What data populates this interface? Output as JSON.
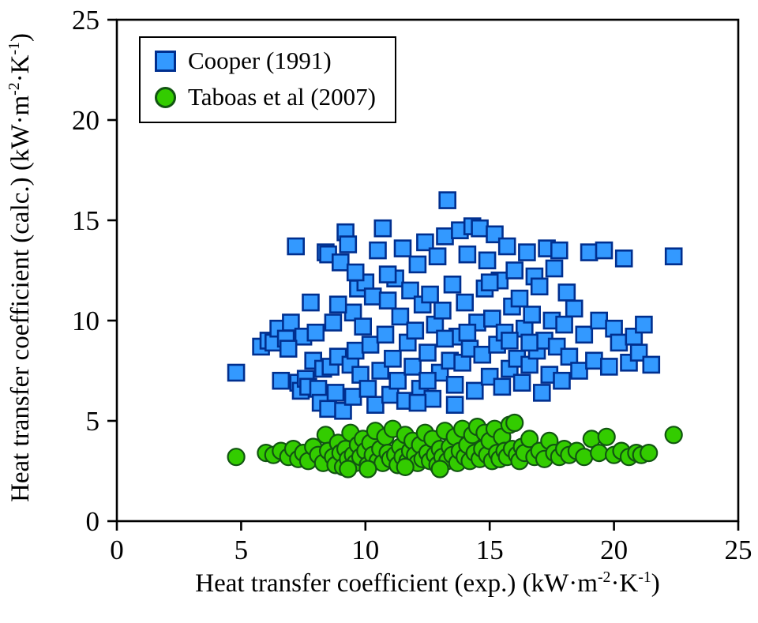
{
  "chart_data": {
    "type": "scatter",
    "title": "",
    "xlabel_parts": [
      {
        "t": "Heat transfer coefficient (exp.) (kW·m"
      },
      {
        "t": "-2",
        "sup": true
      },
      {
        "t": "·K"
      },
      {
        "t": "-1",
        "sup": true
      },
      {
        "t": ")"
      }
    ],
    "ylabel_parts": [
      {
        "t": "Heat transfer coefficient (calc.) (kW·m"
      },
      {
        "t": "-2",
        "sup": true
      },
      {
        "t": "·K"
      },
      {
        "t": "-1",
        "sup": true
      },
      {
        "t": ")"
      }
    ],
    "xlim": [
      0,
      25
    ],
    "ylim": [
      0,
      25
    ],
    "xticks": [
      0,
      5,
      10,
      15,
      20,
      25
    ],
    "yticks": [
      0,
      5,
      10,
      15,
      20,
      25
    ],
    "grid": false,
    "legend_position": "top-left",
    "frame_color": "#000000",
    "series": [
      {
        "name": "Cooper (1991)",
        "marker": "square",
        "fill": "#3399FF",
        "stroke": "#002F8F",
        "points": [
          [
            5.8,
            8.7
          ],
          [
            6.1,
            9.0
          ],
          [
            6.3,
            8.9
          ],
          [
            6.5,
            9.6
          ],
          [
            6.6,
            7.0
          ],
          [
            6.8,
            9.1
          ],
          [
            7.0,
            9.9
          ],
          [
            7.2,
            13.7
          ],
          [
            7.3,
            6.9
          ],
          [
            7.4,
            6.5
          ],
          [
            7.5,
            9.2
          ],
          [
            7.6,
            7.1
          ],
          [
            7.7,
            6.7
          ],
          [
            7.8,
            10.9
          ],
          [
            7.9,
            8.0
          ],
          [
            8.0,
            9.4
          ],
          [
            8.1,
            6.6
          ],
          [
            8.2,
            5.9
          ],
          [
            8.3,
            7.6
          ],
          [
            8.4,
            13.4
          ],
          [
            8.5,
            13.3
          ],
          [
            8.5,
            5.6
          ],
          [
            8.6,
            7.7
          ],
          [
            8.7,
            9.9
          ],
          [
            8.8,
            6.4
          ],
          [
            8.9,
            8.2
          ],
          [
            9.0,
            12.9
          ],
          [
            9.1,
            5.5
          ],
          [
            9.2,
            14.4
          ],
          [
            9.3,
            13.8
          ],
          [
            9.4,
            7.8
          ],
          [
            9.5,
            6.2
          ],
          [
            9.5,
            10.4
          ],
          [
            9.6,
            8.5
          ],
          [
            9.7,
            11.6
          ],
          [
            9.8,
            7.3
          ],
          [
            9.9,
            9.7
          ],
          [
            10.0,
            11.9
          ],
          [
            10.1,
            6.6
          ],
          [
            10.2,
            8.8
          ],
          [
            10.3,
            11.2
          ],
          [
            10.4,
            5.8
          ],
          [
            10.5,
            13.5
          ],
          [
            10.6,
            7.5
          ],
          [
            10.7,
            14.6
          ],
          [
            10.8,
            9.3
          ],
          [
            10.9,
            11.0
          ],
          [
            11.0,
            6.3
          ],
          [
            11.1,
            8.1
          ],
          [
            11.2,
            12.1
          ],
          [
            11.3,
            7.0
          ],
          [
            11.4,
            10.2
          ],
          [
            11.5,
            13.6
          ],
          [
            11.6,
            6.0
          ],
          [
            11.7,
            8.9
          ],
          [
            11.8,
            11.5
          ],
          [
            11.9,
            7.7
          ],
          [
            12.0,
            9.5
          ],
          [
            12.1,
            12.8
          ],
          [
            12.2,
            6.6
          ],
          [
            12.3,
            10.8
          ],
          [
            12.4,
            13.9
          ],
          [
            12.5,
            8.4
          ],
          [
            12.6,
            11.3
          ],
          [
            12.7,
            6.1
          ],
          [
            12.8,
            9.8
          ],
          [
            12.9,
            13.2
          ],
          [
            13.0,
            7.4
          ],
          [
            13.1,
            10.5
          ],
          [
            13.2,
            14.2
          ],
          [
            13.3,
            16.0
          ],
          [
            13.4,
            8.0
          ],
          [
            13.5,
            11.8
          ],
          [
            13.6,
            6.8
          ],
          [
            13.7,
            9.2
          ],
          [
            13.8,
            14.5
          ],
          [
            13.9,
            7.9
          ],
          [
            14.0,
            10.9
          ],
          [
            14.1,
            13.3
          ],
          [
            14.2,
            8.6
          ],
          [
            14.3,
            14.7
          ],
          [
            14.4,
            6.5
          ],
          [
            14.5,
            9.9
          ],
          [
            14.6,
            14.6
          ],
          [
            14.7,
            8.3
          ],
          [
            14.8,
            11.6
          ],
          [
            14.9,
            13.0
          ],
          [
            15.0,
            7.2
          ],
          [
            15.1,
            10.1
          ],
          [
            15.2,
            14.3
          ],
          [
            15.3,
            8.8
          ],
          [
            15.4,
            12.0
          ],
          [
            15.5,
            6.7
          ],
          [
            15.6,
            9.4
          ],
          [
            15.7,
            13.7
          ],
          [
            15.8,
            7.6
          ],
          [
            15.9,
            10.7
          ],
          [
            16.0,
            12.5
          ],
          [
            16.1,
            8.1
          ],
          [
            16.2,
            11.1
          ],
          [
            16.3,
            6.9
          ],
          [
            16.4,
            9.6
          ],
          [
            16.5,
            13.4
          ],
          [
            16.6,
            7.8
          ],
          [
            16.7,
            10.3
          ],
          [
            16.8,
            12.2
          ],
          [
            16.9,
            8.5
          ],
          [
            17.0,
            11.7
          ],
          [
            17.1,
            6.4
          ],
          [
            17.2,
            9.0
          ],
          [
            17.3,
            13.6
          ],
          [
            17.4,
            7.3
          ],
          [
            17.5,
            10.0
          ],
          [
            17.6,
            12.6
          ],
          [
            17.7,
            8.7
          ],
          [
            17.8,
            13.5
          ],
          [
            17.9,
            7.0
          ],
          [
            18.0,
            9.8
          ],
          [
            18.1,
            11.4
          ],
          [
            18.2,
            8.2
          ],
          [
            18.4,
            10.6
          ],
          [
            18.6,
            7.5
          ],
          [
            18.8,
            9.3
          ],
          [
            19.0,
            13.4
          ],
          [
            19.2,
            8.0
          ],
          [
            19.4,
            10.0
          ],
          [
            19.6,
            13.5
          ],
          [
            19.8,
            7.7
          ],
          [
            20.0,
            9.6
          ],
          [
            20.2,
            8.9
          ],
          [
            20.4,
            13.1
          ],
          [
            20.6,
            7.9
          ],
          [
            20.8,
            9.2
          ],
          [
            21.0,
            8.4
          ],
          [
            21.2,
            9.8
          ],
          [
            21.5,
            7.8
          ],
          [
            22.4,
            13.2
          ],
          [
            4.8,
            7.4
          ],
          [
            6.9,
            8.6
          ],
          [
            8.9,
            10.8
          ],
          [
            9.6,
            12.4
          ],
          [
            10.9,
            12.3
          ],
          [
            12.5,
            7.0
          ],
          [
            13.2,
            9.1
          ],
          [
            14.1,
            9.4
          ],
          [
            15.0,
            11.9
          ],
          [
            15.8,
            9.0
          ],
          [
            16.6,
            8.9
          ],
          [
            12.1,
            5.9
          ],
          [
            13.6,
            5.8
          ]
        ]
      },
      {
        "name": "Taboas et al (2007)",
        "marker": "circle",
        "fill": "#33CC00",
        "stroke": "#115511",
        "points": [
          [
            4.8,
            3.2
          ],
          [
            6.0,
            3.4
          ],
          [
            6.3,
            3.3
          ],
          [
            6.6,
            3.5
          ],
          [
            6.9,
            3.2
          ],
          [
            7.1,
            3.6
          ],
          [
            7.3,
            3.1
          ],
          [
            7.5,
            3.4
          ],
          [
            7.7,
            3.0
          ],
          [
            7.9,
            3.7
          ],
          [
            8.1,
            3.3
          ],
          [
            8.3,
            2.9
          ],
          [
            8.4,
            4.3
          ],
          [
            8.5,
            3.5
          ],
          [
            8.7,
            3.2
          ],
          [
            8.8,
            2.8
          ],
          [
            8.9,
            3.9
          ],
          [
            9.0,
            3.4
          ],
          [
            9.1,
            2.7
          ],
          [
            9.2,
            3.6
          ],
          [
            9.3,
            3.1
          ],
          [
            9.4,
            4.4
          ],
          [
            9.5,
            3.3
          ],
          [
            9.6,
            2.9
          ],
          [
            9.7,
            3.8
          ],
          [
            9.8,
            3.2
          ],
          [
            9.9,
            4.1
          ],
          [
            10.0,
            3.5
          ],
          [
            10.1,
            2.8
          ],
          [
            10.2,
            3.9
          ],
          [
            10.3,
            3.3
          ],
          [
            10.4,
            4.5
          ],
          [
            10.5,
            3.0
          ],
          [
            10.6,
            3.6
          ],
          [
            10.7,
            2.9
          ],
          [
            10.8,
            4.2
          ],
          [
            10.9,
            3.4
          ],
          [
            11.0,
            3.1
          ],
          [
            11.1,
            4.6
          ],
          [
            11.2,
            3.3
          ],
          [
            11.3,
            2.8
          ],
          [
            11.4,
            3.7
          ],
          [
            11.5,
            3.2
          ],
          [
            11.6,
            4.3
          ],
          [
            11.7,
            3.0
          ],
          [
            11.8,
            3.5
          ],
          [
            11.9,
            4.0
          ],
          [
            12.0,
            3.3
          ],
          [
            12.1,
            2.9
          ],
          [
            12.2,
            3.8
          ],
          [
            12.3,
            3.1
          ],
          [
            12.4,
            4.4
          ],
          [
            12.5,
            3.4
          ],
          [
            12.6,
            3.0
          ],
          [
            12.7,
            4.1
          ],
          [
            12.8,
            3.3
          ],
          [
            12.9,
            2.8
          ],
          [
            13.0,
            3.6
          ],
          [
            13.1,
            3.2
          ],
          [
            13.2,
            4.5
          ],
          [
            13.3,
            3.0
          ],
          [
            13.4,
            3.7
          ],
          [
            13.5,
            3.3
          ],
          [
            13.6,
            4.2
          ],
          [
            13.7,
            2.9
          ],
          [
            13.8,
            3.5
          ],
          [
            13.9,
            4.6
          ],
          [
            14.0,
            3.2
          ],
          [
            14.1,
            3.8
          ],
          [
            14.2,
            3.0
          ],
          [
            14.3,
            4.3
          ],
          [
            14.4,
            3.4
          ],
          [
            14.5,
            4.7
          ],
          [
            14.6,
            3.1
          ],
          [
            14.7,
            3.6
          ],
          [
            14.8,
            4.4
          ],
          [
            14.9,
            3.3
          ],
          [
            15.0,
            4.0
          ],
          [
            15.1,
            3.0
          ],
          [
            15.2,
            4.6
          ],
          [
            15.3,
            3.4
          ],
          [
            15.4,
            3.1
          ],
          [
            15.5,
            4.2
          ],
          [
            15.6,
            3.5
          ],
          [
            15.7,
            3.2
          ],
          [
            15.8,
            4.8
          ],
          [
            15.9,
            3.6
          ],
          [
            16.0,
            4.9
          ],
          [
            16.1,
            3.3
          ],
          [
            16.2,
            3.0
          ],
          [
            16.3,
            3.7
          ],
          [
            16.4,
            3.4
          ],
          [
            16.6,
            4.1
          ],
          [
            16.8,
            3.2
          ],
          [
            17.0,
            3.5
          ],
          [
            17.2,
            3.1
          ],
          [
            17.4,
            4.0
          ],
          [
            17.6,
            3.4
          ],
          [
            17.8,
            3.2
          ],
          [
            18.0,
            3.6
          ],
          [
            18.2,
            3.3
          ],
          [
            18.5,
            3.5
          ],
          [
            18.8,
            3.2
          ],
          [
            19.1,
            4.1
          ],
          [
            19.4,
            3.4
          ],
          [
            19.7,
            4.2
          ],
          [
            20.0,
            3.3
          ],
          [
            20.3,
            3.5
          ],
          [
            20.6,
            3.2
          ],
          [
            20.9,
            3.4
          ],
          [
            21.1,
            3.3
          ],
          [
            21.4,
            3.4
          ],
          [
            22.4,
            4.3
          ],
          [
            9.3,
            2.6
          ],
          [
            10.1,
            2.6
          ],
          [
            11.6,
            2.7
          ],
          [
            13.0,
            2.6
          ]
        ]
      }
    ]
  }
}
